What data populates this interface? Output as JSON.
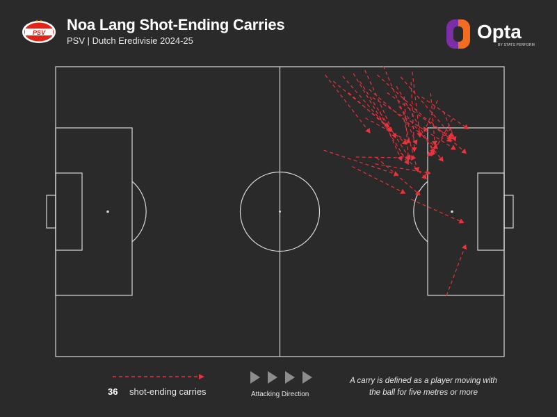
{
  "header": {
    "title": "Noa Lang Shot-Ending Carries",
    "subtitle": "PSV | Dutch Eredivisie 2024-25",
    "club_badge_text": "PSV",
    "brand_name": "Opta",
    "brand_sub": "BY STATS PERFORM"
  },
  "colors": {
    "background": "#2b2a2a",
    "pitch_lines": "#d9d9d9",
    "carry": "#e8323c",
    "opta_purple": "#7b2ea6",
    "opta_orange": "#f36d21",
    "psv_red": "#e2231a"
  },
  "legend": {
    "count": "36",
    "label": "shot-ending carries",
    "direction_label": "Attacking Direction",
    "note": "A carry is defined as a player moving with the ball for five metres or more"
  },
  "chart_data": {
    "type": "scatter",
    "xlim": [
      0,
      105
    ],
    "ylim": [
      0,
      68
    ],
    "attacking_direction": "right",
    "carries": [
      {
        "start": [
          63.1,
          66.1
        ],
        "end": [
          73.6,
          52.5
        ]
      },
      {
        "start": [
          65.0,
          64.6
        ],
        "end": [
          78.0,
          53.9
        ]
      },
      {
        "start": [
          67.2,
          65.8
        ],
        "end": [
          78.5,
          52.8
        ]
      },
      {
        "start": [
          69.7,
          66.4
        ],
        "end": [
          82.6,
          45.1
        ]
      },
      {
        "start": [
          68.6,
          61.9
        ],
        "end": [
          82.2,
          49.8
        ]
      },
      {
        "start": [
          71.2,
          64.6
        ],
        "end": [
          83.0,
          46.3
        ]
      },
      {
        "start": [
          72.4,
          67.2
        ],
        "end": [
          79.6,
          51.3
        ]
      },
      {
        "start": [
          73.4,
          62.7
        ],
        "end": [
          89.4,
          48.8
        ]
      },
      {
        "start": [
          74.2,
          60.8
        ],
        "end": [
          93.6,
          48.6
        ]
      },
      {
        "start": [
          75.3,
          66.1
        ],
        "end": [
          92.6,
          50.4
        ]
      },
      {
        "start": [
          76.7,
          68.2
        ],
        "end": [
          84.5,
          49.8
        ]
      },
      {
        "start": [
          77.6,
          61.9
        ],
        "end": [
          92.8,
          51.1
        ]
      },
      {
        "start": [
          72.5,
          56.0
        ],
        "end": [
          83.1,
          50.2
        ]
      },
      {
        "start": [
          79.8,
          63.4
        ],
        "end": [
          88.6,
          47.8
        ]
      },
      {
        "start": [
          80.8,
          65.6
        ],
        "end": [
          93.0,
          51.5
        ]
      },
      {
        "start": [
          81.6,
          61.0
        ],
        "end": [
          82.6,
          46.0
        ]
      },
      {
        "start": [
          83.2,
          64.4
        ],
        "end": [
          84.0,
          48.1
        ]
      },
      {
        "start": [
          85.7,
          60.9
        ],
        "end": [
          96.6,
          53.4
        ]
      },
      {
        "start": [
          83.5,
          66.8
        ],
        "end": [
          85.3,
          51.5
        ]
      },
      {
        "start": [
          87.8,
          61.8
        ],
        "end": [
          88.8,
          49.6
        ]
      },
      {
        "start": [
          89.4,
          60.1
        ],
        "end": [
          86.3,
          52.8
        ]
      },
      {
        "start": [
          80.4,
          58.7
        ],
        "end": [
          90.7,
          45.8
        ]
      },
      {
        "start": [
          90.8,
          57.5
        ],
        "end": [
          93.6,
          50.6
        ]
      },
      {
        "start": [
          92.9,
          55.7
        ],
        "end": [
          87.9,
          47.1
        ]
      },
      {
        "start": [
          87.9,
          55.0
        ],
        "end": [
          96.1,
          47.7
        ]
      },
      {
        "start": [
          92.6,
          53.6
        ],
        "end": [
          87.1,
          47.0
        ]
      },
      {
        "start": [
          75.9,
          57.5
        ],
        "end": [
          81.0,
          46.0
        ]
      },
      {
        "start": [
          80.8,
          47.8
        ],
        "end": [
          86.8,
          41.7
        ]
      },
      {
        "start": [
          74.8,
          45.2
        ],
        "end": [
          87.7,
          43.0
        ]
      },
      {
        "start": [
          70.3,
          46.8
        ],
        "end": [
          84.2,
          46.6
        ]
      },
      {
        "start": [
          69.4,
          44.6
        ],
        "end": [
          81.8,
          38.3
        ]
      },
      {
        "start": [
          81.5,
          55.7
        ],
        "end": [
          84.8,
          43.4
        ]
      },
      {
        "start": [
          75.1,
          46.7
        ],
        "end": [
          85.3,
          37.9
        ]
      },
      {
        "start": [
          62.8,
          48.4
        ],
        "end": [
          80.2,
          42.6
        ]
      },
      {
        "start": [
          83.2,
          36.9
        ],
        "end": [
          95.5,
          31.4
        ]
      },
      {
        "start": [
          91.5,
          14.3
        ],
        "end": [
          96.0,
          26.2
        ]
      }
    ]
  }
}
